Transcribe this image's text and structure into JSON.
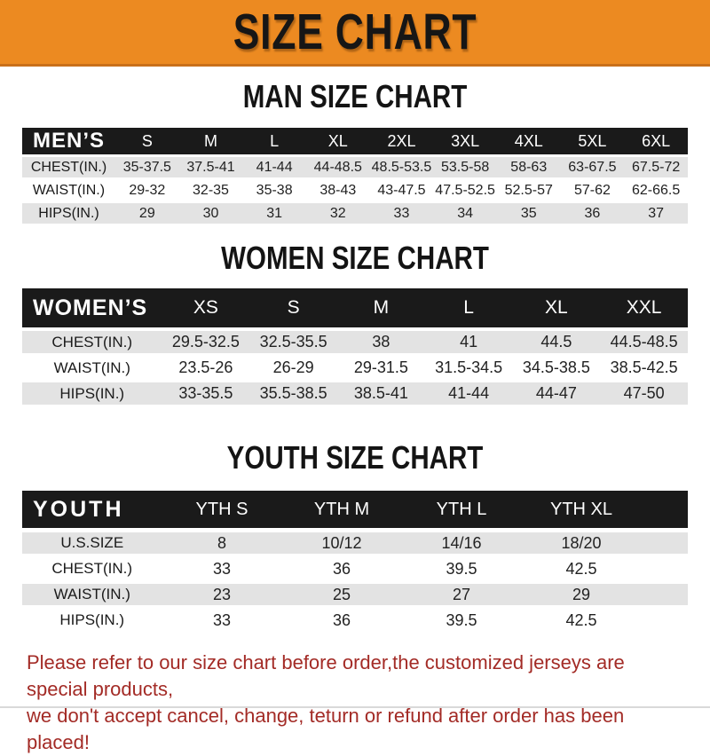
{
  "banner": {
    "title": "SIZE CHART"
  },
  "sections": [
    {
      "heading": "MAN SIZE CHART",
      "header_label": "MEN’S",
      "columns": [
        "S",
        "M",
        "L",
        "XL",
        "2XL",
        "3XL",
        "4XL",
        "5XL",
        "6XL"
      ],
      "rows": [
        {
          "label": "CHEST(IN.)",
          "values": [
            "35-37.5",
            "37.5-41",
            "41-44",
            "44-48.5",
            "48.5-53.5",
            "53.5-58",
            "58-63",
            "63-67.5",
            "67.5-72"
          ]
        },
        {
          "label": "WAIST(IN.)",
          "values": [
            "29-32",
            "32-35",
            "35-38",
            "38-43",
            "43-47.5",
            "47.5-52.5",
            "52.5-57",
            "57-62",
            "62-66.5"
          ]
        },
        {
          "label": "HIPS(IN.)",
          "values": [
            "29",
            "30",
            "31",
            "32",
            "33",
            "34",
            "35",
            "36",
            "37"
          ]
        }
      ]
    },
    {
      "heading": "WOMEN SIZE CHART",
      "header_label": "WOMEN’S",
      "columns": [
        "XS",
        "S",
        "M",
        "L",
        "XL",
        "XXL"
      ],
      "rows": [
        {
          "label": "CHEST(IN.)",
          "values": [
            "29.5-32.5",
            "32.5-35.5",
            "38",
            "41",
            "44.5",
            "44.5-48.5"
          ]
        },
        {
          "label": "WAIST(IN.)",
          "values": [
            "23.5-26",
            "26-29",
            "29-31.5",
            "31.5-34.5",
            "34.5-38.5",
            "38.5-42.5"
          ]
        },
        {
          "label": "HIPS(IN.)",
          "values": [
            "33-35.5",
            "35.5-38.5",
            "38.5-41",
            "41-44",
            "44-47",
            "47-50"
          ]
        }
      ]
    },
    {
      "heading": "YOUTH SIZE CHART",
      "header_label": "YOUTH",
      "columns": [
        "YTH S",
        "YTH M",
        "YTH L",
        "YTH XL"
      ],
      "rows": [
        {
          "label": "U.S.SIZE",
          "values": [
            "8",
            "10/12",
            "14/16",
            "18/20"
          ]
        },
        {
          "label": "CHEST(IN.)",
          "values": [
            "33",
            "36",
            "39.5",
            "42.5"
          ]
        },
        {
          "label": "WAIST(IN.)",
          "values": [
            "23",
            "25",
            "27",
            "29"
          ]
        },
        {
          "label": "HIPS(IN.)",
          "values": [
            "33",
            "36",
            "39.5",
            "42.5"
          ]
        }
      ]
    }
  ],
  "footer": {
    "line1": "Please refer to our size chart before order,the customized jerseys are special products,",
    "line2": "we don't accept cancel, change, teturn or refund after order has been placed!"
  },
  "colors": {
    "banner_bg": "#ec8a21",
    "banner_border": "#c9701a",
    "bar_bg": "#1a1a1a",
    "row_alt": "#e3e3e3",
    "note_color": "#a32b26"
  }
}
